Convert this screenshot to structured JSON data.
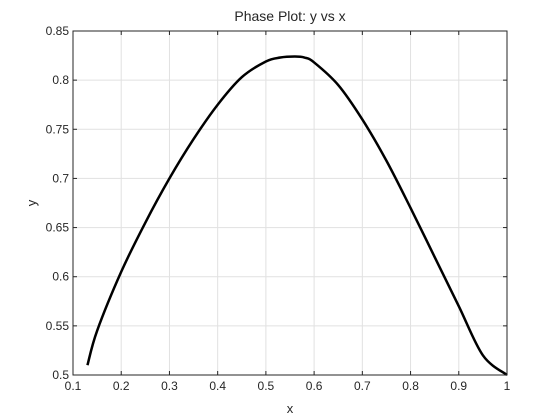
{
  "chart_data": {
    "type": "line",
    "title": "Phase Plot: y vs x",
    "xlabel": "x",
    "ylabel": "y",
    "xlim": [
      0.1,
      1
    ],
    "ylim": [
      0.5,
      0.85
    ],
    "xticks": [
      0.1,
      0.2,
      0.3,
      0.4,
      0.5,
      0.6,
      0.7,
      0.8,
      0.9,
      1
    ],
    "xtick_labels": [
      "0.1",
      "0.2",
      "0.3",
      "0.4",
      "0.5",
      "0.6",
      "0.7",
      "0.8",
      "0.9",
      "1"
    ],
    "yticks": [
      0.5,
      0.55,
      0.6,
      0.65,
      0.7,
      0.75,
      0.8,
      0.85
    ],
    "ytick_labels": [
      "0.5",
      "0.55",
      "0.6",
      "0.65",
      "0.7",
      "0.75",
      "0.8",
      "0.85"
    ],
    "grid": true,
    "legend": "none",
    "colors": {
      "line": "#000000",
      "grid": "#e1e1e1",
      "axes": "#262626",
      "background": "#ffffff"
    },
    "series": [
      {
        "x": [
          0.13,
          0.15,
          0.2,
          0.25,
          0.3,
          0.35,
          0.4,
          0.45,
          0.5,
          0.53,
          0.56,
          0.58,
          0.6,
          0.65,
          0.7,
          0.75,
          0.8,
          0.85,
          0.9,
          0.95,
          1.0
        ],
        "y": [
          0.51,
          0.545,
          0.605,
          0.655,
          0.7,
          0.74,
          0.775,
          0.803,
          0.819,
          0.823,
          0.824,
          0.823,
          0.818,
          0.795,
          0.76,
          0.718,
          0.67,
          0.62,
          0.57,
          0.52,
          0.5
        ]
      }
    ]
  }
}
